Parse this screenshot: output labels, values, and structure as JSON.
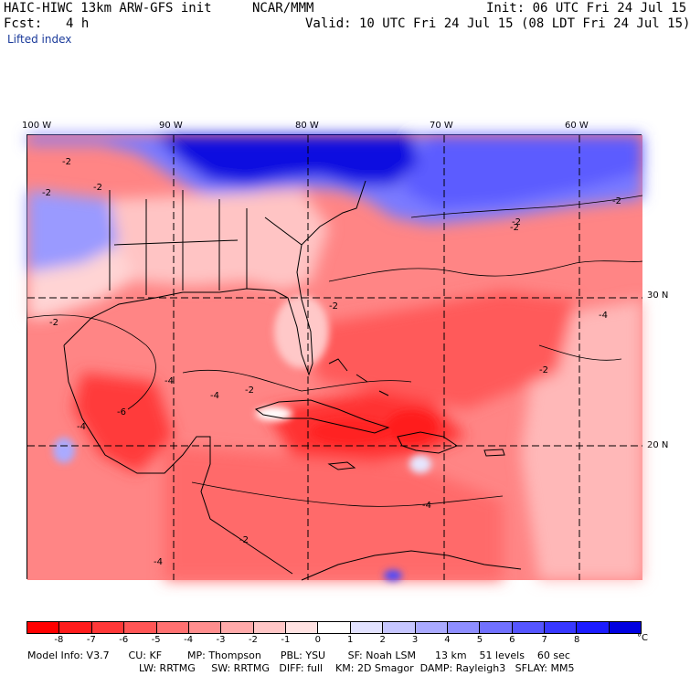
{
  "header": {
    "model_title": "HAIC-HIWC 13km ARW-GFS init",
    "center": "NCAR/MMM",
    "init": "Init: 06 UTC Fri 24 Jul 15",
    "fcst_label": "Fcst:",
    "fcst_value": "4 h",
    "valid": "Valid: 10 UTC Fri 24 Jul 15 (08 LDT Fri 24 Jul 15)",
    "field": "Lifted index"
  },
  "map": {
    "lon_labels": [
      "100 W",
      "90 W",
      "80 W",
      "70 W",
      "60 W"
    ],
    "lat_labels": [
      "30 N",
      "20 N"
    ],
    "contour_labels": [
      "-2",
      "-2",
      "-2",
      "-2",
      "-2",
      "-2",
      "-2",
      "-4",
      "-4",
      "-4",
      "-4",
      "-6",
      "-4",
      "-2",
      "-2",
      "-4",
      "-2",
      "-2"
    ],
    "colors": {
      "deep_red": "#ff1a1a",
      "red": "#ff6666",
      "pink": "#ffb3b3",
      "light_blue": "#b3b3ff",
      "blue": "#3333ff",
      "deep_blue": "#0000cc"
    }
  },
  "colorbar": {
    "ticks": [
      "-8",
      "-7",
      "-6",
      "-5",
      "-4",
      "-3",
      "-2",
      "-1",
      "0",
      "1",
      "2",
      "3",
      "4",
      "5",
      "6",
      "7",
      "8"
    ],
    "unit": "°C",
    "colors": [
      "#ff0000",
      "#ff1c1c",
      "#ff3838",
      "#ff5555",
      "#ff7171",
      "#ff8e8e",
      "#ffaaaa",
      "#ffc6c6",
      "#ffe2e2",
      "#ffffff",
      "#e2e2ff",
      "#c6c6ff",
      "#aaaaff",
      "#8e8eff",
      "#7171ff",
      "#5555ff",
      "#3838ff",
      "#1c1cff",
      "#0000e0"
    ]
  },
  "footer": {
    "line1": "Model Info: V3.7      CU: KF        MP: Thompson      PBL: YSU       SF: Noah LSM      13 km    51 levels    60 sec",
    "line2": "LW: RRTMG     SW: RRTMG   DIFF: full    KM: 2D Smagor  DAMP: Rayleigh3   SFLAY: MM5"
  }
}
